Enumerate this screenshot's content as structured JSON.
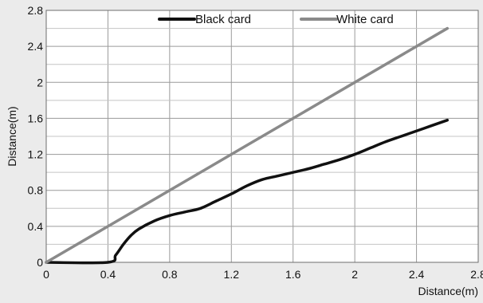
{
  "chart_data": {
    "type": "line",
    "xlabel": "Distance(m)",
    "ylabel": "Distance(m)",
    "xlim": [
      0,
      2.8
    ],
    "ylim": [
      0,
      2.8
    ],
    "x_ticks": [
      "0",
      "0.4",
      "0.8",
      "1.2",
      "1.6",
      "2",
      "2.4",
      "2.8"
    ],
    "y_ticks": [
      "0",
      "0.4",
      "0.8",
      "1.2",
      "1.6",
      "2",
      "2.4",
      "2.8"
    ],
    "grid": true,
    "legend_position": "top",
    "series": [
      {
        "name": "Black card",
        "color": "#111111",
        "x": [
          0,
          0.4,
          0.45,
          0.5,
          0.55,
          0.6,
          0.7,
          0.8,
          0.9,
          1.0,
          1.1,
          1.2,
          1.3,
          1.4,
          1.5,
          1.6,
          1.7,
          1.8,
          1.9,
          2.0,
          2.1,
          2.2,
          2.3,
          2.4,
          2.5,
          2.6
        ],
        "y": [
          0,
          0,
          0.08,
          0.2,
          0.3,
          0.37,
          0.46,
          0.52,
          0.56,
          0.6,
          0.68,
          0.76,
          0.85,
          0.92,
          0.96,
          1.0,
          1.04,
          1.09,
          1.14,
          1.2,
          1.27,
          1.34,
          1.4,
          1.46,
          1.52,
          1.58
        ]
      },
      {
        "name": "White card",
        "color": "#8a8a8a",
        "x": [
          0,
          2.6
        ],
        "y": [
          0,
          2.6
        ]
      }
    ]
  }
}
